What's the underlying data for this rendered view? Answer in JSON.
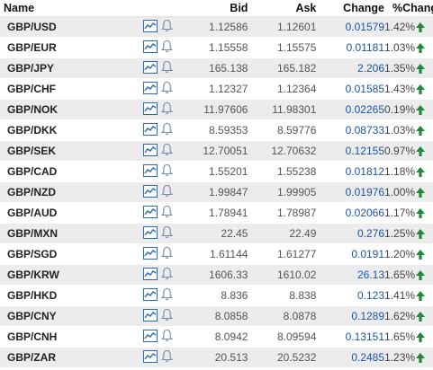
{
  "headers": {
    "name": "Name",
    "bid": "Bid",
    "ask": "Ask",
    "change": "Change",
    "pct_change": "%Change"
  },
  "colors": {
    "row_stripe": "#ececec",
    "change_text": "#1a55a8",
    "up_arrow": "#1f8a3a",
    "icon_blue": "#2b6cb0"
  },
  "icons": {
    "chart": "chart-icon",
    "alert": "bell-icon",
    "trend": "up-arrow-icon"
  },
  "rows": [
    {
      "name": "GBP/USD",
      "bid": "1.12586",
      "ask": "1.12601",
      "change": "0.01579",
      "pct_change": "1.42%",
      "direction": "up"
    },
    {
      "name": "GBP/EUR",
      "bid": "1.15558",
      "ask": "1.15575",
      "change": "0.01181",
      "pct_change": "1.03%",
      "direction": "up"
    },
    {
      "name": "GBP/JPY",
      "bid": "165.138",
      "ask": "165.182",
      "change": "2.206",
      "pct_change": "1.35%",
      "direction": "up"
    },
    {
      "name": "GBP/CHF",
      "bid": "1.12327",
      "ask": "1.12364",
      "change": "0.01585",
      "pct_change": "1.43%",
      "direction": "up"
    },
    {
      "name": "GBP/NOK",
      "bid": "11.97606",
      "ask": "11.98301",
      "change": "0.02265",
      "pct_change": "0.19%",
      "direction": "up"
    },
    {
      "name": "GBP/DKK",
      "bid": "8.59353",
      "ask": "8.59776",
      "change": "0.08733",
      "pct_change": "1.03%",
      "direction": "up"
    },
    {
      "name": "GBP/SEK",
      "bid": "12.70051",
      "ask": "12.70632",
      "change": "0.12155",
      "pct_change": "0.97%",
      "direction": "up"
    },
    {
      "name": "GBP/CAD",
      "bid": "1.55201",
      "ask": "1.55238",
      "change": "0.01812",
      "pct_change": "1.18%",
      "direction": "up"
    },
    {
      "name": "GBP/NZD",
      "bid": "1.99847",
      "ask": "1.99905",
      "change": "0.01976",
      "pct_change": "1.00%",
      "direction": "up"
    },
    {
      "name": "GBP/AUD",
      "bid": "1.78941",
      "ask": "1.78987",
      "change": "0.02066",
      "pct_change": "1.17%",
      "direction": "up"
    },
    {
      "name": "GBP/MXN",
      "bid": "22.45",
      "ask": "22.49",
      "change": "0.276",
      "pct_change": "1.25%",
      "direction": "up"
    },
    {
      "name": "GBP/SGD",
      "bid": "1.61144",
      "ask": "1.61277",
      "change": "0.0191",
      "pct_change": "1.20%",
      "direction": "up"
    },
    {
      "name": "GBP/KRW",
      "bid": "1606.33",
      "ask": "1610.02",
      "change": "26.13",
      "pct_change": "1.65%",
      "direction": "up"
    },
    {
      "name": "GBP/HKD",
      "bid": "8.836",
      "ask": "8.838",
      "change": "0.123",
      "pct_change": "1.41%",
      "direction": "up"
    },
    {
      "name": "GBP/CNY",
      "bid": "8.0858",
      "ask": "8.0878",
      "change": "0.1289",
      "pct_change": "1.62%",
      "direction": "up"
    },
    {
      "name": "GBP/CNH",
      "bid": "8.0942",
      "ask": "8.09594",
      "change": "0.13151",
      "pct_change": "1.65%",
      "direction": "up"
    },
    {
      "name": "GBP/ZAR",
      "bid": "20.513",
      "ask": "20.5232",
      "change": "0.2485",
      "pct_change": "1.23%",
      "direction": "up"
    }
  ]
}
